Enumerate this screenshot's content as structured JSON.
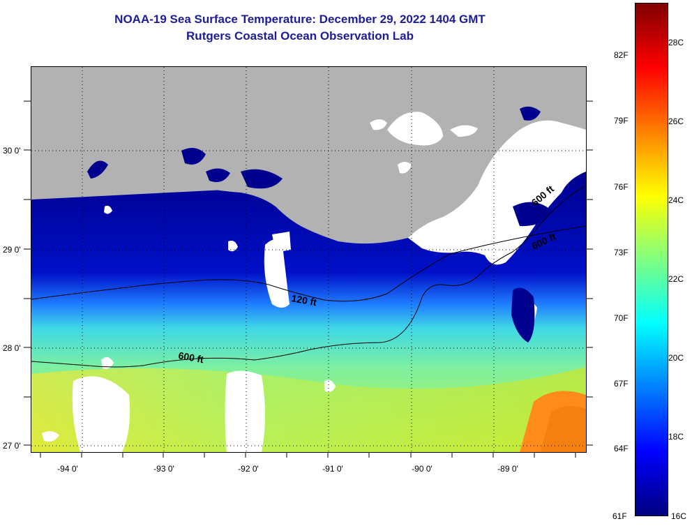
{
  "title": {
    "line1": "NOAA-19 Sea Surface Temperature:  December 29, 2022 1404 GMT",
    "line2": "Rutgers Coastal Ocean Observation Lab"
  },
  "map": {
    "lat_labels": [
      "30 0'",
      "29 0'",
      "28 0'",
      "27 0'"
    ],
    "lon_labels": [
      "-94 0'",
      "-93 0'",
      "-92 0'",
      "-91 0'",
      "-90 0'",
      "-89 0'"
    ],
    "contour_labels": [
      "120 ft",
      "600 ft",
      "600 ft",
      "600 ft"
    ],
    "colors": {
      "land": "#b2b2b2",
      "cloud": "#ffffff",
      "cold_water": "#00008f",
      "mid_water": "#1e7bff",
      "cyan_water": "#3fe0d0",
      "warm_water": "#c8f03c",
      "hot_water": "#ff8c1a"
    }
  },
  "colorbar": {
    "fahrenheit": [
      "82F",
      "79F",
      "76F",
      "73F",
      "70F",
      "67F",
      "64F",
      "61F"
    ],
    "celsius": [
      "28C",
      "26C",
      "24C",
      "22C",
      "20C",
      "18C",
      "16C"
    ],
    "stops": [
      "#800000",
      "#ff0000",
      "#ff8000",
      "#ffff00",
      "#80ff80",
      "#00ffff",
      "#0080ff",
      "#0000ff",
      "#000080"
    ]
  }
}
